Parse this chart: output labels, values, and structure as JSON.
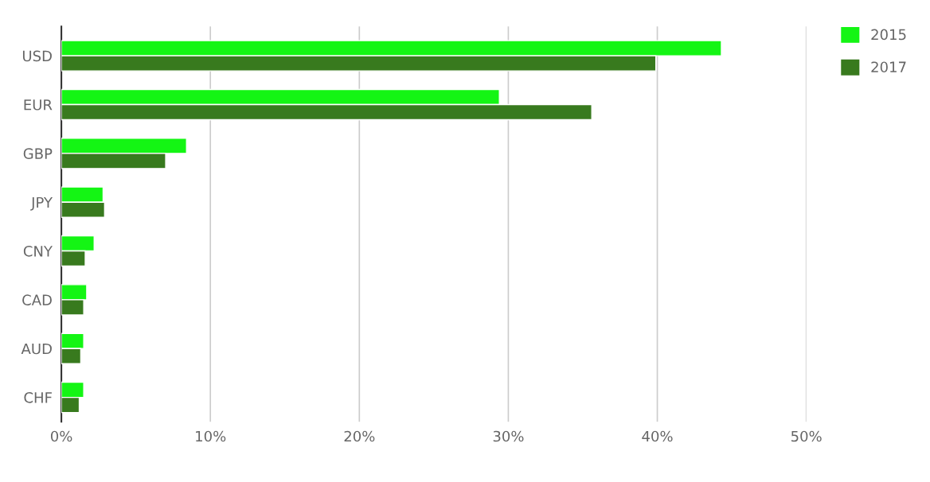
{
  "chart_data": {
    "type": "bar",
    "orientation": "horizontal",
    "categories": [
      "USD",
      "EUR",
      "GBP",
      "JPY",
      "CNY",
      "CAD",
      "AUD",
      "CHF"
    ],
    "series": [
      {
        "name": "2015",
        "color": "#14f514",
        "values": [
          44.3,
          29.4,
          8.4,
          2.8,
          2.2,
          1.7,
          1.5,
          1.5
        ]
      },
      {
        "name": "2017",
        "color": "#387a1e",
        "values": [
          39.9,
          35.6,
          7.0,
          2.9,
          1.6,
          1.5,
          1.3,
          1.2
        ]
      }
    ],
    "xlim": [
      0,
      50
    ],
    "xticks": [
      {
        "value": 0,
        "label": "0%"
      },
      {
        "value": 10,
        "label": "10%"
      },
      {
        "value": 20,
        "label": "20%"
      },
      {
        "value": 30,
        "label": "30%"
      },
      {
        "value": 40,
        "label": "40%"
      },
      {
        "value": 50,
        "label": "50%"
      }
    ],
    "grid": "x",
    "legend": "top right"
  }
}
